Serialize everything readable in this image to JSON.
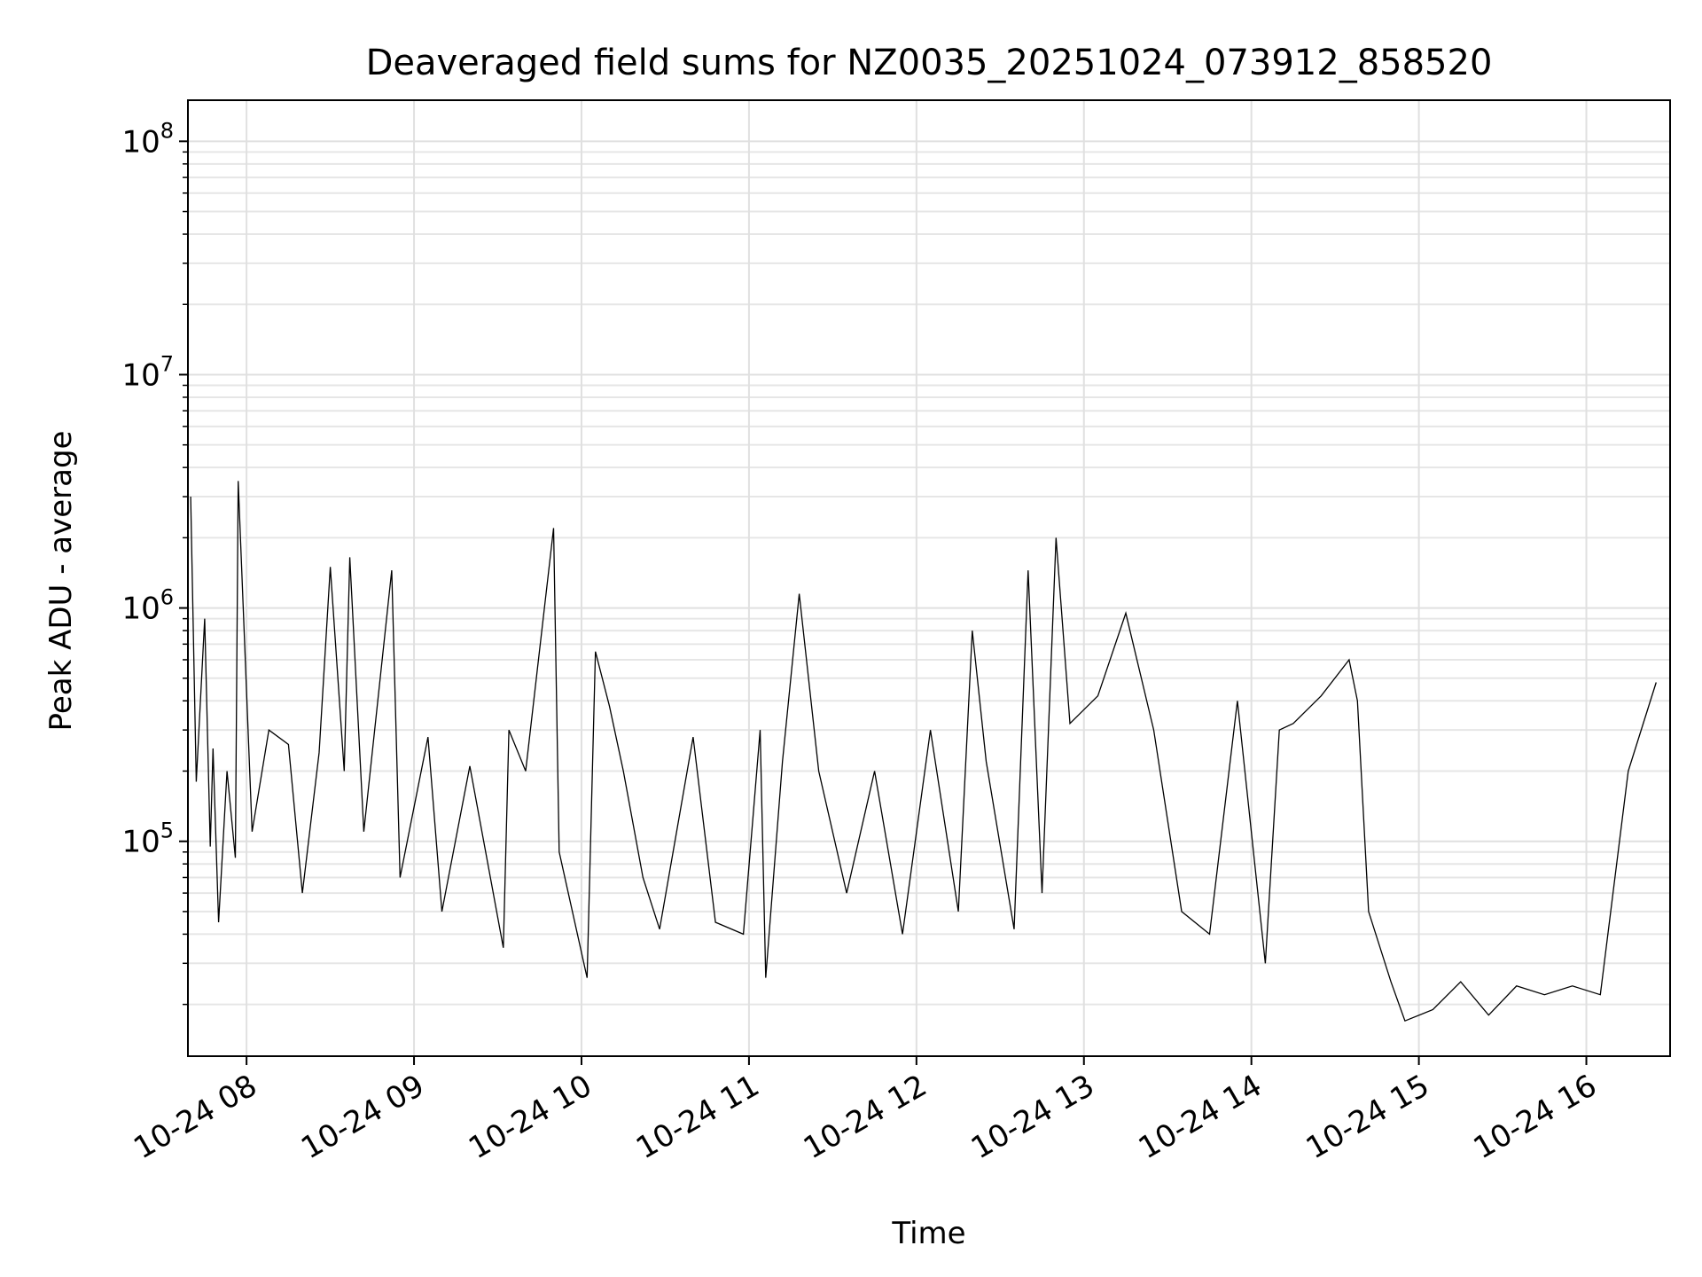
{
  "chart_data": {
    "type": "line",
    "title": "Deaveraged field sums for NZ0035_20251024_073912_858520",
    "xlabel": "Time",
    "ylabel": "Peak ADU - average",
    "xscale": "time",
    "yscale": "log",
    "xlim": [
      "2025-10-24 07:39",
      "2025-10-24 16:30"
    ],
    "ylim": [
      12000,
      150000000
    ],
    "x_ticks": [
      {
        "label": "10-24 08",
        "value": "2025-10-24 08:00"
      },
      {
        "label": "10-24 09",
        "value": "2025-10-24 09:00"
      },
      {
        "label": "10-24 10",
        "value": "2025-10-24 10:00"
      },
      {
        "label": "10-24 11",
        "value": "2025-10-24 11:00"
      },
      {
        "label": "10-24 12",
        "value": "2025-10-24 12:00"
      },
      {
        "label": "10-24 13",
        "value": "2025-10-24 13:00"
      },
      {
        "label": "10-24 14",
        "value": "2025-10-24 14:00"
      },
      {
        "label": "10-24 15",
        "value": "2025-10-24 15:00"
      },
      {
        "label": "10-24 16",
        "value": "2025-10-24 16:00"
      }
    ],
    "y_ticks": [
      {
        "base": "10",
        "exp": "5",
        "value": 100000
      },
      {
        "base": "10",
        "exp": "6",
        "value": 1000000
      },
      {
        "base": "10",
        "exp": "7",
        "value": 10000000
      },
      {
        "base": "10",
        "exp": "8",
        "value": 100000000
      }
    ],
    "grid": true,
    "grid_minor": true,
    "series": [
      {
        "color": "#000000",
        "x": [
          "2025-10-24 07:40",
          "2025-10-24 07:42",
          "2025-10-24 07:45",
          "2025-10-24 07:47",
          "2025-10-24 07:48",
          "2025-10-24 07:50",
          "2025-10-24 07:53",
          "2025-10-24 07:56",
          "2025-10-24 07:57",
          "2025-10-24 08:02",
          "2025-10-24 08:08",
          "2025-10-24 08:15",
          "2025-10-24 08:20",
          "2025-10-24 08:26",
          "2025-10-24 08:30",
          "2025-10-24 08:35",
          "2025-10-24 08:37",
          "2025-10-24 08:42",
          "2025-10-24 08:52",
          "2025-10-24 08:55",
          "2025-10-24 09:05",
          "2025-10-24 09:10",
          "2025-10-24 09:20",
          "2025-10-24 09:32",
          "2025-10-24 09:34",
          "2025-10-24 09:40",
          "2025-10-24 09:50",
          "2025-10-24 09:52",
          "2025-10-24 10:02",
          "2025-10-24 10:05",
          "2025-10-24 10:10",
          "2025-10-24 10:15",
          "2025-10-24 10:22",
          "2025-10-24 10:28",
          "2025-10-24 10:40",
          "2025-10-24 10:48",
          "2025-10-24 10:58",
          "2025-10-24 11:04",
          "2025-10-24 11:06",
          "2025-10-24 11:12",
          "2025-10-24 11:18",
          "2025-10-24 11:25",
          "2025-10-24 11:35",
          "2025-10-24 11:45",
          "2025-10-24 11:55",
          "2025-10-24 12:05",
          "2025-10-24 12:15",
          "2025-10-24 12:20",
          "2025-10-24 12:25",
          "2025-10-24 12:35",
          "2025-10-24 12:40",
          "2025-10-24 12:45",
          "2025-10-24 12:50",
          "2025-10-24 12:55",
          "2025-10-24 13:05",
          "2025-10-24 13:15",
          "2025-10-24 13:25",
          "2025-10-24 13:35",
          "2025-10-24 13:45",
          "2025-10-24 13:55",
          "2025-10-24 14:05",
          "2025-10-24 14:10",
          "2025-10-24 14:15",
          "2025-10-24 14:25",
          "2025-10-24 14:35",
          "2025-10-24 14:38",
          "2025-10-24 14:42",
          "2025-10-24 14:50",
          "2025-10-24 14:55",
          "2025-10-24 15:05",
          "2025-10-24 15:15",
          "2025-10-24 15:25",
          "2025-10-24 15:35",
          "2025-10-24 15:45",
          "2025-10-24 15:55",
          "2025-10-24 16:05",
          "2025-10-24 16:15",
          "2025-10-24 16:25"
        ],
        "y": [
          3000000,
          180000,
          900000,
          95000,
          250000,
          45000,
          200000,
          85000,
          3500000,
          110000,
          300000,
          260000,
          60000,
          240000,
          1500000,
          200000,
          1650000,
          110000,
          1450000,
          70000,
          280000,
          50000,
          210000,
          35000,
          300000,
          200000,
          2200000,
          90000,
          26000,
          650000,
          380000,
          200000,
          70000,
          42000,
          280000,
          45000,
          40000,
          300000,
          26000,
          220000,
          1150000,
          200000,
          60000,
          200000,
          40000,
          300000,
          50000,
          800000,
          220000,
          42000,
          1450000,
          60000,
          2000000,
          320000,
          420000,
          950000,
          300000,
          50000,
          40000,
          400000,
          30000,
          300000,
          320000,
          420000,
          600000,
          400000,
          50000,
          25000,
          17000,
          19000,
          25000,
          18000,
          24000,
          22000,
          24000,
          22000,
          200000,
          480000
        ]
      }
    ]
  }
}
